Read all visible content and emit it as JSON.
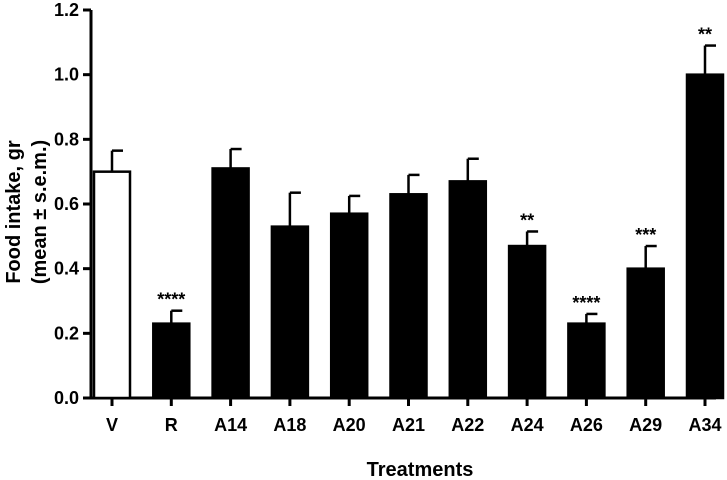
{
  "chart_data": {
    "type": "bar",
    "xlabel": "Treatments",
    "ylabel_line1": "Food intake, gr",
    "ylabel_line2": "(mean ± s.e.m.)",
    "ylim": [
      0,
      1.2
    ],
    "yticks": [
      "0.0",
      "0.2",
      "0.4",
      "0.6",
      "0.8",
      "1.0",
      "1.2"
    ],
    "categories": [
      "V",
      "R",
      "A14",
      "A18",
      "A20",
      "A21",
      "A22",
      "A24",
      "A26",
      "A29",
      "A34"
    ],
    "values": [
      0.7,
      0.23,
      0.71,
      0.53,
      0.57,
      0.63,
      0.67,
      0.47,
      0.23,
      0.4,
      1.0
    ],
    "errors": [
      0.065,
      0.04,
      0.06,
      0.105,
      0.055,
      0.06,
      0.07,
      0.045,
      0.03,
      0.07,
      0.09
    ],
    "significance": [
      "",
      "****",
      "",
      "",
      "",
      "",
      "",
      "**",
      "****",
      "***",
      "**"
    ],
    "bar_fill": [
      "#ffffff",
      "#000000",
      "#000000",
      "#000000",
      "#000000",
      "#000000",
      "#000000",
      "#000000",
      "#000000",
      "#000000",
      "#000000"
    ],
    "grid": false,
    "legend": "none"
  }
}
